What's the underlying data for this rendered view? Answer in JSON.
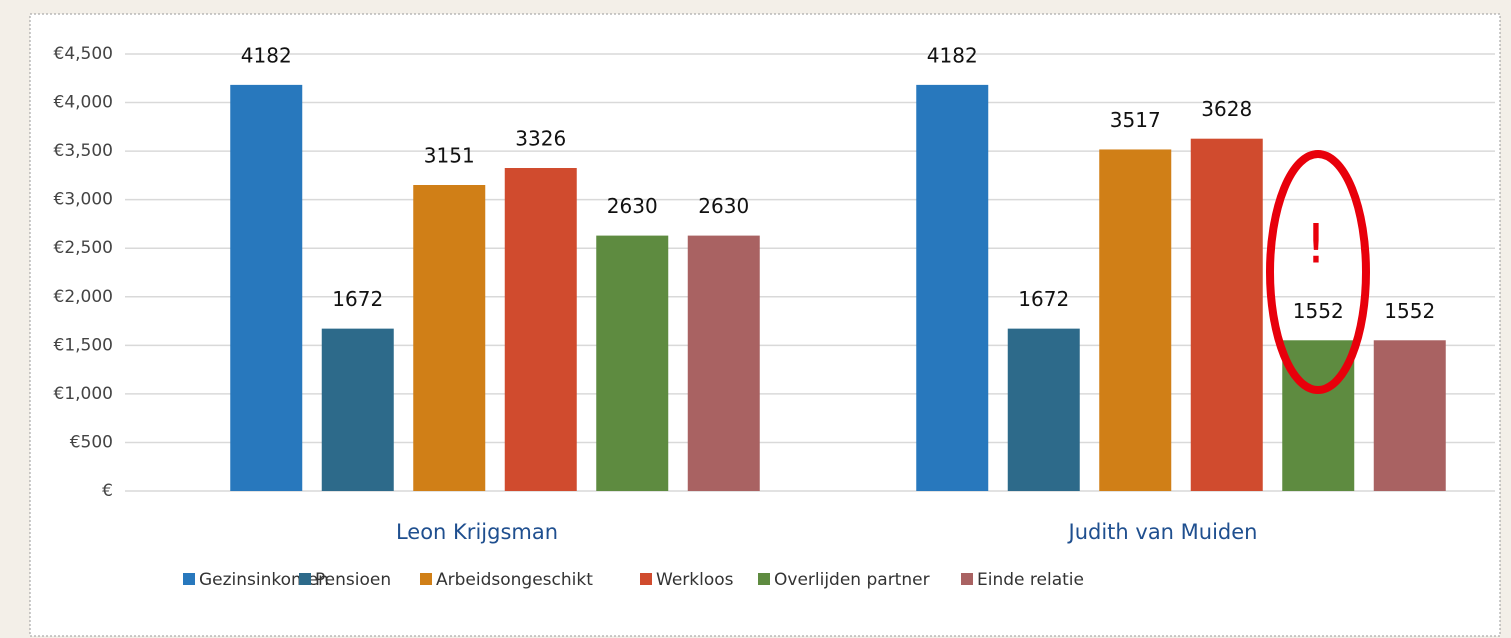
{
  "chart_data": {
    "type": "bar",
    "categories": [
      "Leon Krijgsman",
      "Judith van Muiden"
    ],
    "series": [
      {
        "name": "Gezinsinkomen",
        "color": "#2878bd",
        "values": [
          4182,
          4182
        ]
      },
      {
        "name": "Pensioen",
        "color": "#2d6a8a",
        "values": [
          1672,
          1672
        ]
      },
      {
        "name": "Arbeidsongeschikt",
        "color": "#d07f17",
        "values": [
          3151,
          3517
        ]
      },
      {
        "name": "Werkloos",
        "color": "#d04b2e",
        "values": [
          3326,
          3628
        ]
      },
      {
        "name": "Overlijden partner",
        "color": "#5e8b40",
        "values": [
          2630,
          1552
        ]
      },
      {
        "name": "Einde relatie",
        "color": "#a96262",
        "values": [
          2630,
          1552
        ]
      }
    ],
    "ylim": [
      0,
      4500
    ],
    "yticks": [
      {
        "value": 0,
        "label": "€"
      },
      {
        "value": 500,
        "label": "€500"
      },
      {
        "value": 1000,
        "label": "€1,000"
      },
      {
        "value": 1500,
        "label": "€1,500"
      },
      {
        "value": 2000,
        "label": "€2,000"
      },
      {
        "value": 2500,
        "label": "€2,500"
      },
      {
        "value": 3000,
        "label": "€3,000"
      },
      {
        "value": 3500,
        "label": "€3,500"
      },
      {
        "value": 4000,
        "label": "€4,000"
      },
      {
        "value": 4500,
        "label": "€4,500"
      }
    ],
    "grid": true,
    "legend": "bottom",
    "annotation": "!"
  }
}
